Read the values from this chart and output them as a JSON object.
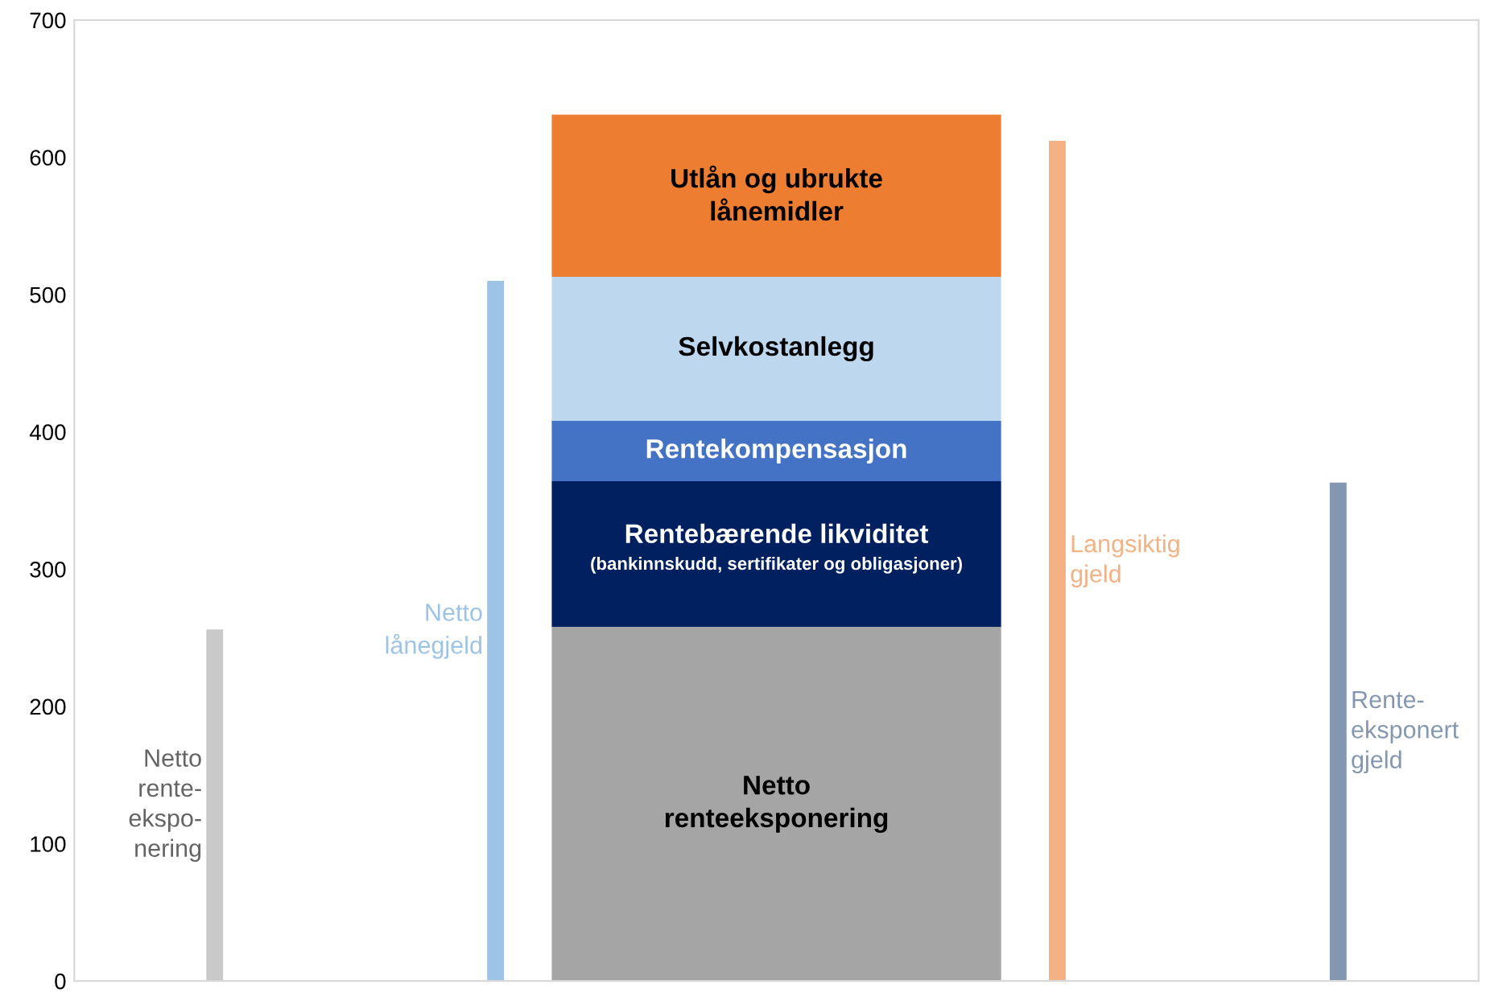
{
  "chart_data": {
    "type": "bar",
    "stacked": true,
    "categories": [
      null,
      null,
      null,
      null,
      null
    ],
    "ylim": [
      0,
      700
    ],
    "yticks": [
      0,
      100,
      200,
      300,
      400,
      500,
      600,
      700
    ],
    "grid": false,
    "legend": false,
    "tick_labels": "y",
    "series": [
      {
        "name": "Netto\nrente-\nekspo-\nnering",
        "color": "#c9c9c9",
        "values": [
          256,
          null,
          null,
          null,
          null
        ]
      },
      {
        "name": "Netto\nlånegjeld",
        "color": "#9dc3e6",
        "values": [
          null,
          510,
          null,
          null,
          null
        ]
      },
      {
        "name": "Netto\nrenteeksponering",
        "color": "#a5a5a5",
        "values": [
          null,
          null,
          258,
          null,
          null
        ]
      },
      {
        "name": "Rentebærende likviditet\n(bankinnskudd, sertifikater og obligasjoner)",
        "color": "#002060",
        "values": [
          null,
          null,
          106,
          null,
          null
        ]
      },
      {
        "name": "Rentekompensasjon",
        "color": "#4472c4",
        "values": [
          null,
          null,
          44,
          null,
          null
        ]
      },
      {
        "name": "Selvkostanlegg",
        "color": "#bdd7ee",
        "values": [
          null,
          null,
          105,
          null,
          null
        ]
      },
      {
        "name": "Utlån og ubrukte\nlånemidler",
        "color": "#ed7d31",
        "values": [
          null,
          null,
          118,
          null,
          null
        ]
      },
      {
        "name": "Langsiktig\ngjeld",
        "color": "#f4b183",
        "values": [
          null,
          null,
          null,
          612,
          null
        ]
      },
      {
        "name": "Rente-\neksponert\ngjeld",
        "color": "#8497b0",
        "values": [
          null,
          null,
          null,
          null,
          363
        ]
      }
    ]
  }
}
